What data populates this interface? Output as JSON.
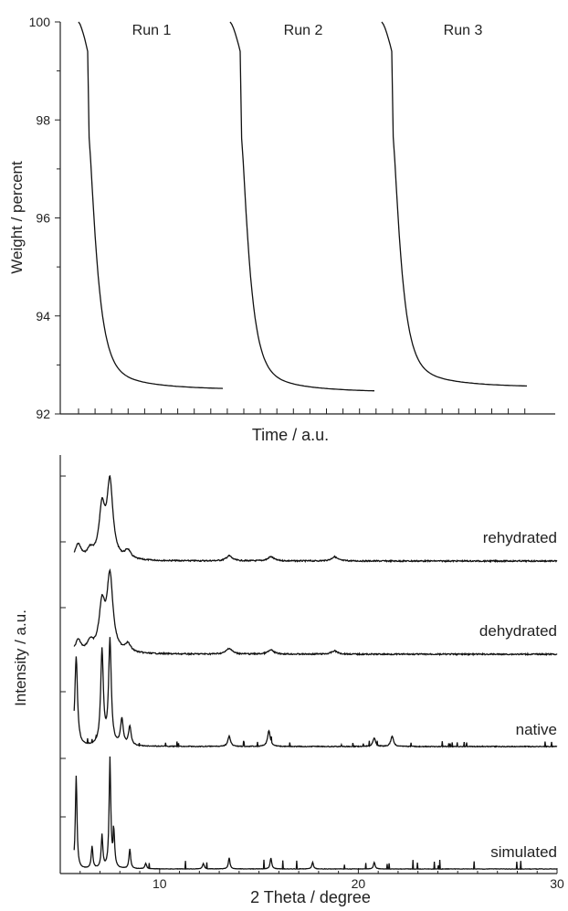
{
  "chart_data": [
    {
      "type": "line",
      "title": "",
      "xlabel": "Time / a.u.",
      "ylabel": "Weight / percent",
      "ylim": [
        92,
        100
      ],
      "yticks": [
        "92",
        "94",
        "96",
        "98",
        "100"
      ],
      "grid": false,
      "annotations": [
        "Run 1",
        "Run 2",
        "Run 3"
      ],
      "series": [
        {
          "name": "Run 1",
          "start": 100.0,
          "plateau": 92.5
        },
        {
          "name": "Run 2",
          "start": 100.0,
          "plateau": 92.45
        },
        {
          "name": "Run 3",
          "start": 100.0,
          "plateau": 92.55
        }
      ]
    },
    {
      "type": "line",
      "title": "",
      "xlabel": "2 Theta / degree",
      "ylabel": "Intensity / a.u.",
      "xlim": [
        5,
        30
      ],
      "xticks": [
        "10",
        "20",
        "30"
      ],
      "grid": false,
      "series": [
        {
          "name": "rehydrated",
          "peaks": [
            [
              5.9,
              0.18
            ],
            [
              6.5,
              0.1
            ],
            [
              7.1,
              0.58
            ],
            [
              7.5,
              0.9
            ],
            [
              8.4,
              0.1
            ],
            [
              13.5,
              0.06
            ],
            [
              15.6,
              0.05
            ],
            [
              18.8,
              0.05
            ]
          ]
        },
        {
          "name": "dehydrated",
          "peaks": [
            [
              5.9,
              0.15
            ],
            [
              6.5,
              0.12
            ],
            [
              7.1,
              0.55
            ],
            [
              7.5,
              0.92
            ],
            [
              8.4,
              0.1
            ],
            [
              13.5,
              0.07
            ],
            [
              15.6,
              0.05
            ],
            [
              18.8,
              0.04
            ]
          ]
        },
        {
          "name": "native",
          "peaks": [
            [
              5.8,
              0.85
            ],
            [
              7.1,
              0.9
            ],
            [
              7.5,
              1.0
            ],
            [
              8.1,
              0.25
            ],
            [
              8.5,
              0.18
            ],
            [
              13.5,
              0.1
            ],
            [
              15.5,
              0.15
            ],
            [
              20.8,
              0.08
            ],
            [
              21.7,
              0.1
            ]
          ]
        },
        {
          "name": "simulated",
          "peaks": [
            [
              5.8,
              0.85
            ],
            [
              6.6,
              0.2
            ],
            [
              7.1,
              0.3
            ],
            [
              7.5,
              1.0
            ],
            [
              7.7,
              0.3
            ],
            [
              8.5,
              0.18
            ],
            [
              9.3,
              0.05
            ],
            [
              12.2,
              0.05
            ],
            [
              13.5,
              0.1
            ],
            [
              15.6,
              0.1
            ],
            [
              17.7,
              0.06
            ],
            [
              20.8,
              0.06
            ]
          ]
        }
      ]
    }
  ]
}
